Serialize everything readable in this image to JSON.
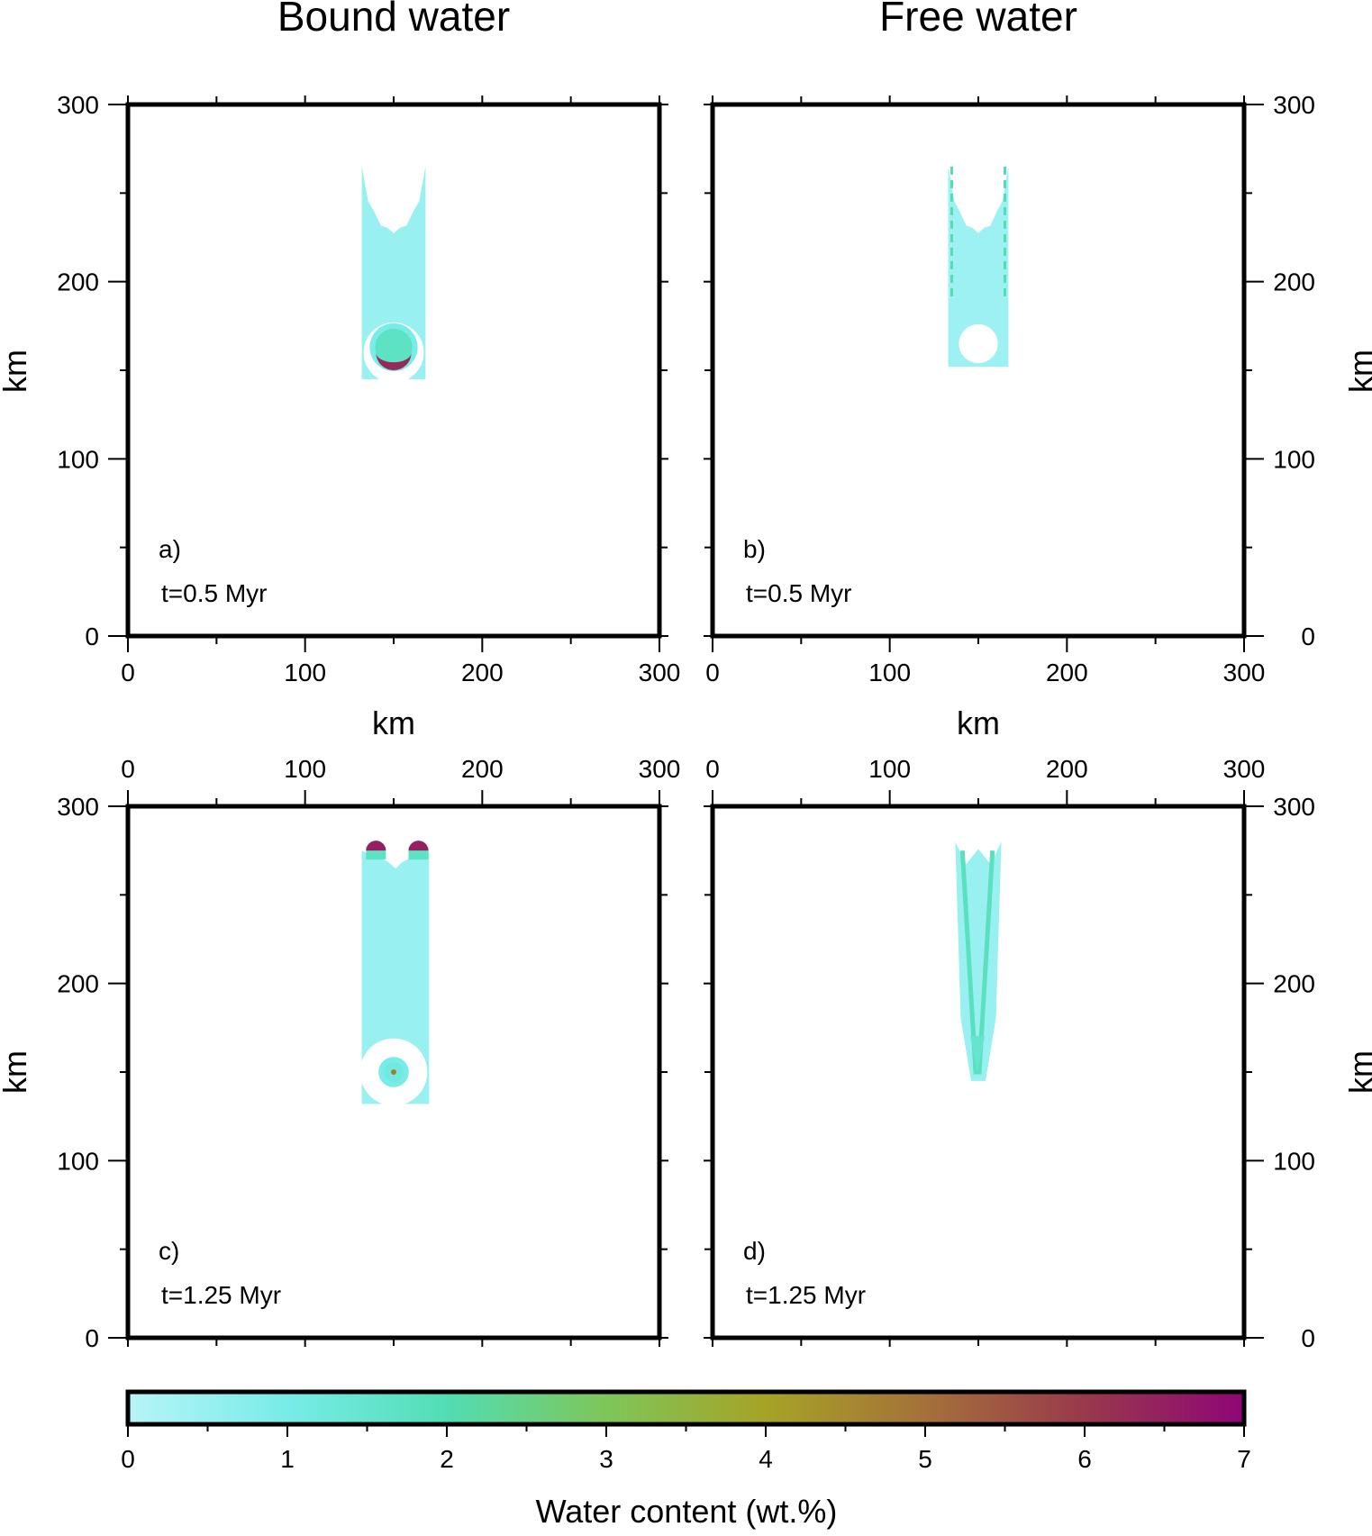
{
  "chart_data": {
    "type": "heatmap",
    "column_titles": [
      "Bound water",
      "Free water"
    ],
    "axis_unit": "km",
    "x_ticks": [
      0,
      100,
      200,
      300
    ],
    "y_ticks": [
      0,
      100,
      200,
      300
    ],
    "xlim": [
      0,
      300
    ],
    "ylim": [
      0,
      300
    ],
    "panels": [
      {
        "label": "a)",
        "time": "t=0.5 Myr",
        "field": "Bound water",
        "features": [
          {
            "kind": "column",
            "x_range": [
              132,
              168
            ],
            "y_range": [
              145,
              265
            ],
            "value": 0.5
          },
          {
            "kind": "ring",
            "center": [
              150,
              160
            ],
            "radius": 17,
            "value": 0.05
          },
          {
            "kind": "disc",
            "center": [
              150,
              163
            ],
            "radius": 12,
            "value": 1.7
          },
          {
            "kind": "crescent",
            "center": [
              150,
              160
            ],
            "radius": 10,
            "value": 6.3
          }
        ]
      },
      {
        "label": "b)",
        "time": "t=0.5 Myr",
        "field": "Free water",
        "features": [
          {
            "kind": "column",
            "x_range": [
              133,
              167
            ],
            "y_range": [
              152,
              265
            ],
            "value": 0.4
          },
          {
            "kind": "hole",
            "center": [
              150,
              165
            ],
            "radius": 11,
            "value": 0
          },
          {
            "kind": "edge-streaks",
            "x": [
              135,
              165
            ],
            "y_range": [
              190,
              265
            ],
            "value": 2.0
          }
        ]
      },
      {
        "label": "c)",
        "time": "t=1.25 Myr",
        "field": "Bound water",
        "features": [
          {
            "kind": "column",
            "x_range": [
              132,
              170
            ],
            "y_range": [
              132,
              275
            ],
            "value": 0.5
          },
          {
            "kind": "ring",
            "center": [
              150,
              150
            ],
            "radius": 19,
            "value": 0.05
          },
          {
            "kind": "disc",
            "center": [
              150,
              150
            ],
            "radius": 7,
            "value": 1.2
          },
          {
            "kind": "dot",
            "center": [
              150,
              150
            ],
            "radius": 1.5,
            "value": 4.8
          },
          {
            "kind": "caps",
            "x": [
              140,
              164
            ],
            "y": 275,
            "value": 6.5
          }
        ]
      },
      {
        "label": "d)",
        "time": "t=1.25 Myr",
        "field": "Free water",
        "features": [
          {
            "kind": "v-column",
            "x_range": [
              137,
              163
            ],
            "y_range": [
              145,
              280
            ],
            "value": 0.5
          },
          {
            "kind": "v-core",
            "x_range": [
              141,
              158
            ],
            "y_range": [
              150,
              275
            ],
            "value": 1.8
          }
        ]
      }
    ],
    "colorbar": {
      "label": "Water content (wt.%)",
      "range": [
        0,
        7
      ],
      "ticks": [
        0,
        1,
        2,
        3,
        4,
        5,
        6,
        7
      ],
      "colors": [
        "#b8f4f8",
        "#78ece8",
        "#52ddb4",
        "#7ec65a",
        "#a6a326",
        "#a4713a",
        "#98394c",
        "#8f0676"
      ]
    }
  }
}
